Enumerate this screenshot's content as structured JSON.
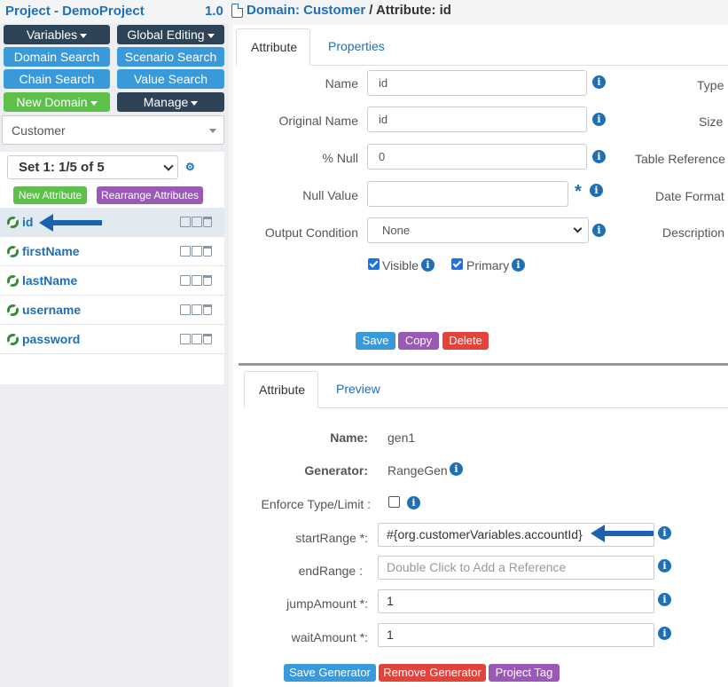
{
  "header": {
    "project_title": "Project - DemoProject",
    "version": "1.0",
    "crumb_domain": "Domain: Customer",
    "crumb_attribute": "/ Attribute: id"
  },
  "nav": {
    "variables": "Variables",
    "global_editing": "Global Editing",
    "domain_search": "Domain Search",
    "scenario_search": "Scenario Search",
    "chain_search": "Chain Search",
    "value_search": "Value Search",
    "new_domain": "New Domain",
    "manage": "Manage"
  },
  "domain_select": {
    "value": "Customer"
  },
  "set_select": {
    "value": "Set 1: 1/5 of 5"
  },
  "attr_buttons": {
    "new_attribute": "New Attribute",
    "rearrange": "Rearrange Attributes"
  },
  "attributes": [
    {
      "name": "id",
      "selected": true
    },
    {
      "name": "firstName",
      "selected": false
    },
    {
      "name": "lastName",
      "selected": false
    },
    {
      "name": "username",
      "selected": false
    },
    {
      "name": "password",
      "selected": false
    }
  ],
  "attr_tabs": {
    "attribute": "Attribute",
    "properties": "Properties"
  },
  "attr_form": {
    "name_label": "Name",
    "name_value": "id",
    "original_name_label": "Original Name",
    "original_name_value": "id",
    "null_pct_label": "% Null",
    "null_pct_value": "0",
    "null_value_label": "Null Value",
    "null_value_value": "",
    "output_condition_label": "Output Condition",
    "output_condition_value": "None",
    "visible_label": "Visible",
    "visible_checked": true,
    "primary_label": "Primary",
    "primary_checked": true,
    "right_labels": [
      "Type",
      "Size",
      "Table Reference",
      "Date Format",
      "Description"
    ]
  },
  "attr_actions": {
    "save": "Save",
    "copy": "Copy",
    "delete": "Delete"
  },
  "gen_tabs": {
    "attribute": "Attribute",
    "preview": "Preview"
  },
  "generator": {
    "name_label": "Name:",
    "name_value": "gen1",
    "generator_label": "Generator:",
    "generator_value": "RangeGen",
    "enforce_label": "Enforce Type/Limit :",
    "enforce_checked": false,
    "start_label": "startRange *:",
    "start_value": "#{org.customerVariables.accountId}",
    "end_label": "endRange :",
    "end_placeholder": "Double Click to Add a Reference",
    "jump_label": "jumpAmount *:",
    "jump_value": "1",
    "wait_label": "waitAmount *:",
    "wait_value": "1"
  },
  "gen_actions": {
    "save": "Save Generator",
    "remove": "Remove Generator",
    "tag": "Project Tag"
  },
  "colors": {
    "brand_blue": "#1f6fb5",
    "button_blue": "#3a9ad9",
    "dark": "#2f4357",
    "green": "#5cc04a",
    "purple": "#9b59b6",
    "red": "#e2443c",
    "arrow": "#1a62b0"
  }
}
